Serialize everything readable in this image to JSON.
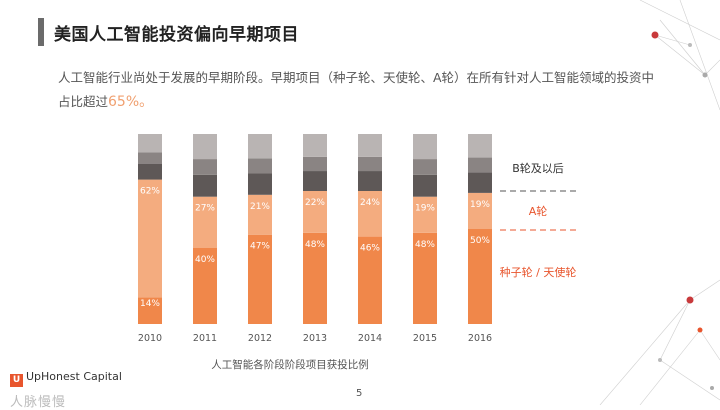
{
  "header": {
    "title": "美国人工智能投资偏向早期项目",
    "description": "人工智能行业尚处于发展的早期阶段。早期项目（种子轮、天使轮、A轮）在所有针对人工智能领域的投资中占比超过",
    "highlight": "65%。"
  },
  "chart_data": {
    "type": "bar",
    "stacked": true,
    "title": "人工智能各阶段阶段项目获投比例",
    "categories": [
      "2010",
      "2011",
      "2012",
      "2013",
      "2014",
      "2015",
      "2016"
    ],
    "series": [
      {
        "name": "种子轮 / 天使轮",
        "values": [
          14,
          40,
          47,
          48,
          46,
          48,
          50
        ],
        "color": "#f0874a"
      },
      {
        "name": "A轮",
        "values": [
          62,
          27,
          21,
          22,
          24,
          19,
          19
        ],
        "color": "#f4ac7f"
      },
      {
        "name": "B轮及以后",
        "values": [
          24,
          33,
          32,
          30,
          30,
          33,
          31
        ],
        "color": "#6e6766"
      }
    ],
    "legend_labels": {
      "later": "B轮及以后",
      "a": "A轮",
      "seed": "种子轮 / 天使轮"
    },
    "ylim": [
      0,
      100
    ],
    "grid": false
  },
  "colors": {
    "seed": "#f0874a",
    "a": "#f4ac7f",
    "later_dark": "#5e5857",
    "later_mid": "#8a8483",
    "later_light": "#b9b4b3",
    "accent": "#e8552d",
    "node": "#c8393b"
  },
  "footer": {
    "logo_text": "UpHonest Capital",
    "logo_mark": "U",
    "watermark": "人脉慢慢",
    "page_number": "5"
  }
}
